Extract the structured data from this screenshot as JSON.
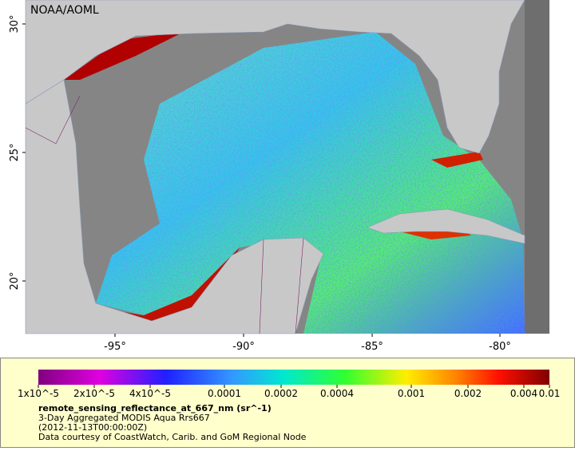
{
  "map": {
    "credit": "NOAA/AOML",
    "lat_ticks": [
      "30°",
      "25°",
      "20°"
    ],
    "lon_ticks": [
      "-95°",
      "-90°",
      "-85°",
      "-80°"
    ]
  },
  "colorbar": {
    "ticks": [
      "1x10^-5",
      "2x10^-5",
      "4x10^-5",
      "0.0001",
      "0.0002",
      "0.0004",
      "0.001",
      "0.002",
      "0.004",
      "0.01"
    ]
  },
  "legend": {
    "variable": "remote_sensing_reflectance_at_667_nm (sr^-1)",
    "lines": [
      "3-Day Aggregated MODIS Aqua Rrs667",
      "(2012-11-13T00:00:00Z)",
      "Data courtesy of CoastWatch, Carib. and GoM Regional Node"
    ]
  }
}
